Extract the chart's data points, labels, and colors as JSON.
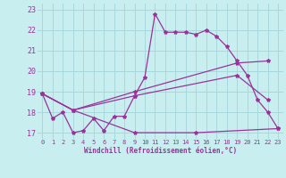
{
  "xlabel": "Windchill (Refroidissement éolien,°C)",
  "background_color": "#c8eef0",
  "grid_color": "#a8d8dc",
  "line_color": "#993399",
  "xlim": [
    -0.5,
    23.5
  ],
  "ylim": [
    16.7,
    23.3
  ],
  "yticks": [
    17,
    18,
    19,
    20,
    21,
    22,
    23
  ],
  "xticks": [
    0,
    1,
    2,
    3,
    4,
    5,
    6,
    7,
    8,
    9,
    10,
    11,
    12,
    13,
    14,
    15,
    16,
    17,
    18,
    19,
    20,
    21,
    22,
    23
  ],
  "series": [
    {
      "x": [
        0,
        1,
        2,
        3,
        4,
        5,
        6,
        7,
        8,
        9,
        10,
        11,
        12,
        13,
        14,
        15,
        16,
        17,
        18,
        19,
        20,
        21,
        22,
        23
      ],
      "y": [
        18.9,
        17.7,
        18.0,
        17.0,
        17.1,
        17.7,
        17.1,
        17.8,
        17.8,
        18.8,
        19.7,
        22.8,
        21.9,
        21.9,
        21.9,
        21.8,
        22.0,
        21.7,
        21.2,
        20.5,
        19.8,
        18.6,
        18.0,
        17.2
      ]
    },
    {
      "x": [
        0,
        3,
        9,
        19,
        22
      ],
      "y": [
        18.9,
        18.1,
        19.0,
        20.4,
        20.5
      ]
    },
    {
      "x": [
        0,
        3,
        9,
        19,
        22
      ],
      "y": [
        18.9,
        18.1,
        18.8,
        19.8,
        18.6
      ]
    },
    {
      "x": [
        0,
        3,
        9,
        15,
        23
      ],
      "y": [
        18.9,
        18.1,
        17.0,
        17.0,
        17.2
      ]
    }
  ]
}
